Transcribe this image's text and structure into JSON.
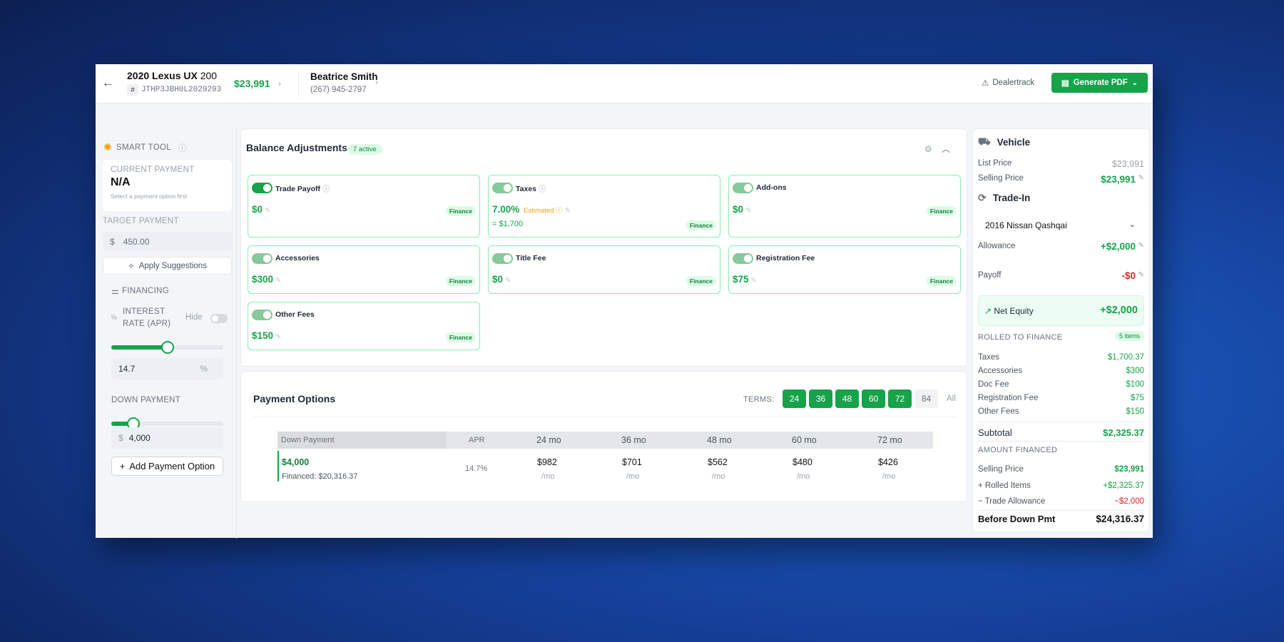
{
  "header": {
    "car_title": "2020 Lexus UX",
    "car_model_suffix": "200",
    "vin_hash": "#",
    "vin": "JTHP3JBH0L2029293",
    "price": "$23,991",
    "customer_name": "Beatrice Smith",
    "customer_phone": "(267) 945-2797",
    "dealertrack_label": "Dealertrack",
    "generate_pdf_label": "Generate PDF"
  },
  "smart_tool": {
    "title": "SMART TOOL",
    "current_payment_label": "CURRENT PAYMENT",
    "current_payment_value": "N/A",
    "current_payment_hint": "Select a payment option first",
    "target_payment_label": "TARGET PAYMENT",
    "target_currency": "$",
    "target_value": "450.00",
    "apply_label": "Apply Suggestions"
  },
  "financing": {
    "title": "FINANCING",
    "apr_icon": "%",
    "apr_label_line1": "INTEREST",
    "apr_label_line2": "RATE (APR)",
    "hide_label": "Hide",
    "apr_slider_level": 0.5,
    "apr_value": "14.7",
    "apr_suffix": "%",
    "down_label": "DOWN PAYMENT",
    "down_slider_level": 0.2,
    "down_currency": "$",
    "down_value": "4,000",
    "add_option_label": "Add Payment Option"
  },
  "balance": {
    "title": "Balance Adjustments",
    "active_badge": "7 active",
    "cards": [
      {
        "title": "Trade Payoff",
        "value": "$0",
        "badge": "Finance"
      },
      {
        "title": "Taxes",
        "value": "7.00%",
        "estimated": "Estimated",
        "sub": "= $1,700",
        "badge": "Finance"
      },
      {
        "title": "Add-ons",
        "value": "$0",
        "badge": "Finance"
      },
      {
        "title": "Accessories",
        "value": "$300",
        "badge": "Finance"
      },
      {
        "title": "Title Fee",
        "value": "$0",
        "badge": "Finance"
      },
      {
        "title": "Registration Fee",
        "value": "$75",
        "badge": "Finance"
      },
      {
        "title": "Other Fees",
        "value": "$150",
        "badge": "Finance"
      }
    ]
  },
  "payment_options": {
    "title": "Payment Options",
    "terms_label": "TERMS:",
    "terms": [
      "24",
      "36",
      "48",
      "60",
      "72",
      "84"
    ],
    "terms_all": "All",
    "headers": [
      "Down Payment",
      "APR",
      "24 mo",
      "36 mo",
      "48 mo",
      "60 mo",
      "72 mo"
    ],
    "row": {
      "down": "$4,000",
      "financed": "Financed: $20,316.37",
      "apr": "14.7%",
      "payments": [
        "$982",
        "$701",
        "$562",
        "$480",
        "$426"
      ],
      "per": "/mo"
    }
  },
  "vehicle": {
    "title": "Vehicle",
    "list_price_label": "List Price",
    "list_price": "$23,991",
    "selling_price_label": "Selling Price",
    "selling_price": "$23,991"
  },
  "trade_in": {
    "title": "Trade-In",
    "selected_vehicle": "2016 Nissan Qashqai",
    "allowance_label": "Allowance",
    "allowance": "+$2,000",
    "payoff_label": "Payoff",
    "payoff": "-$0",
    "net_equity_label": "Net Equity",
    "net_equity": "+$2,000"
  },
  "rolled": {
    "title": "ROLLED TO FINANCE",
    "badge": "5 items",
    "items": [
      {
        "label": "Taxes",
        "value": "$1,700.37"
      },
      {
        "label": "Accessories",
        "value": "$300"
      },
      {
        "label": "Doc Fee",
        "value": "$100"
      },
      {
        "label": "Registration Fee",
        "value": "$75"
      },
      {
        "label": "Other Fees",
        "value": "$150"
      }
    ],
    "subtotal_label": "Subtotal",
    "subtotal": "$2,325.37"
  },
  "amount_financed": {
    "title": "AMOUNT FINANCED",
    "selling_label": "Selling Price",
    "selling": "$23,991",
    "rolled_label": "+ Rolled Items",
    "rolled": "+$2,325.37",
    "trade_label": "− Trade Allowance",
    "trade": "−$2,000",
    "before_label": "Before Down Pmt",
    "before": "$24,316.37"
  },
  "colors": {
    "accent": "#16a34a",
    "negative": "#dc2626",
    "background": "#15409a"
  }
}
